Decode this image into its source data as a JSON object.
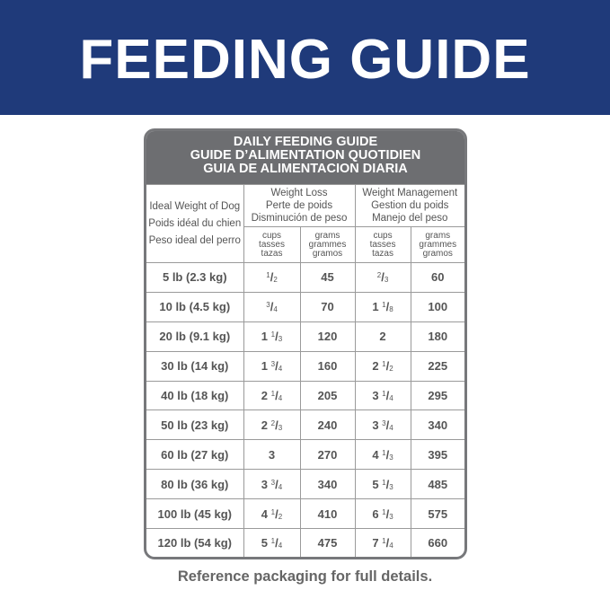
{
  "header": {
    "title": "FEEDING GUIDE"
  },
  "table": {
    "title_lines": [
      "DAILY FEEDING GUIDE",
      "GUIDE D’ALIMENTATION QUOTIDIEN",
      "GUIA DE ALIMENTACION DIARIA"
    ],
    "weight_header": [
      "Ideal Weight of Dog",
      "Poids idéal du chien",
      "Peso ideal del perro"
    ],
    "groups": [
      {
        "lines": [
          "Weight Loss",
          "Perte de poids",
          "Disminución de peso"
        ]
      },
      {
        "lines": [
          "Weight Management",
          "Gestion du poids",
          "Manejo del peso"
        ]
      }
    ],
    "units": [
      [
        "cups",
        "tasses",
        "tazas"
      ],
      [
        "grams",
        "grammes",
        "gramos"
      ],
      [
        "cups",
        "tasses",
        "tazas"
      ],
      [
        "grams",
        "grammes",
        "gramos"
      ]
    ],
    "rows": [
      [
        "5 lb (2.3 kg)",
        "1/2",
        45,
        "2/3",
        60
      ],
      [
        "10 lb (4.5 kg)",
        "3/4",
        70,
        "1 1/8",
        100
      ],
      [
        "20 lb (9.1 kg)",
        "1 1/3",
        120,
        "2",
        180
      ],
      [
        "30 lb (14 kg)",
        "1 3/4",
        160,
        "2 1/2",
        225
      ],
      [
        "40 lb (18 kg)",
        "2 1/4",
        205,
        "3 1/4",
        295
      ],
      [
        "50 lb (23 kg)",
        "2 2/3",
        240,
        "3 3/4",
        340
      ],
      [
        "60 lb (27 kg)",
        "3",
        270,
        "4 1/3",
        395
      ],
      [
        "80 lb (36 kg)",
        "3 3/4",
        340,
        "5 1/3",
        485
      ],
      [
        "100 lb (45 kg)",
        "4 1/2",
        410,
        "6 1/3",
        575
      ],
      [
        "120 lb (54 kg)",
        "5 1/4",
        475,
        "7 1/4",
        660
      ]
    ]
  },
  "footer": "Reference packaging for full details."
}
